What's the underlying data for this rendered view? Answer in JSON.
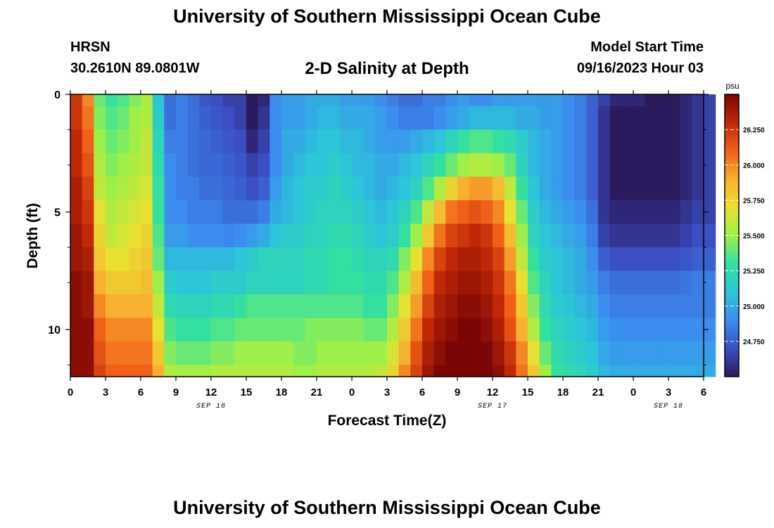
{
  "header": {
    "title": "University of Southern Mississippi Ocean Cube",
    "station": "HRSN",
    "coordinates": "30.2610N  89.0801W",
    "subtitle": "2-D Salinity at Depth",
    "model_start_label": "Model Start Time",
    "model_start_value": "09/16/2023 Hour 03"
  },
  "footer": {
    "title": "University of Southern Mississippi Ocean Cube"
  },
  "chart_data": {
    "type": "heatmap",
    "title": "2-D Salinity at Depth",
    "xlabel": "Forecast Time(Z)",
    "ylabel": "Depth (ft)",
    "x_hours_range": [
      0,
      54
    ],
    "x_tick_hours": [
      0,
      3,
      6,
      9,
      12,
      15,
      18,
      21,
      24,
      27,
      30,
      33,
      36,
      39,
      42,
      45,
      48,
      51,
      54
    ],
    "x_tick_labels": [
      "0",
      "3",
      "6",
      "9",
      "12",
      "15",
      "18",
      "21",
      "0",
      "3",
      "6",
      "9",
      "12",
      "15",
      "18",
      "21",
      "0",
      "3",
      "6"
    ],
    "date_labels": [
      {
        "hour": 12,
        "text": "SEP 16"
      },
      {
        "hour": 36,
        "text": "SEP 17"
      },
      {
        "hour": 51,
        "text": "SEP 18"
      }
    ],
    "y_range": [
      0,
      12
    ],
    "y_major_ticks": [
      0,
      5,
      10
    ],
    "y_minor_ticks": [
      1.5,
      3,
      6.5,
      8,
      11.5
    ],
    "colorbar": {
      "unit": "psu",
      "range": [
        24.5,
        26.5
      ],
      "ticks": [
        24.75,
        25.0,
        25.25,
        25.5,
        25.75,
        26.0,
        26.25
      ],
      "tick_labels": [
        "24.750",
        "25.000",
        "25.250",
        "25.500",
        "25.750",
        "26.000",
        "26.250"
      ],
      "colormap": [
        "#2b1b5e",
        "#3a4fc4",
        "#3b8ef0",
        "#2bc6d8",
        "#33e0a0",
        "#9ef048",
        "#e8e030",
        "#f8b030",
        "#f06018",
        "#c02808",
        "#7a0606"
      ]
    },
    "depth_levels_ft": [
      0,
      1,
      2,
      3,
      4,
      5,
      6,
      7,
      8,
      9,
      10,
      11,
      12
    ],
    "salinity_psu": [
      [
        26.25,
        26.0,
        25.4,
        25.3,
        25.35,
        25.45,
        25.55,
        25.1,
        24.8,
        24.85,
        24.8,
        24.72,
        24.7,
        24.65,
        24.65,
        24.3,
        24.55,
        24.9,
        24.95,
        24.95,
        25.0,
        25.0,
        25.0,
        24.95,
        24.95,
        24.95,
        24.9,
        24.85,
        24.8,
        24.8,
        24.85,
        24.85,
        24.9,
        24.95,
        24.9,
        24.9,
        24.95,
        24.95,
        24.95,
        24.95,
        24.95,
        24.95,
        24.9,
        24.85,
        24.75,
        24.65,
        24.55,
        24.55,
        24.55,
        24.5,
        24.5,
        24.5,
        24.55,
        24.6,
        24.65
      ],
      [
        26.25,
        26.05,
        25.45,
        25.35,
        25.4,
        25.5,
        25.55,
        25.15,
        24.8,
        24.85,
        24.8,
        24.75,
        24.72,
        24.7,
        24.65,
        24.45,
        24.6,
        24.9,
        24.95,
        24.95,
        25.0,
        25.05,
        25.05,
        25.0,
        25.0,
        25.0,
        24.95,
        24.9,
        24.85,
        24.85,
        24.85,
        24.9,
        24.95,
        25.0,
        25.05,
        25.05,
        25.05,
        25.05,
        25.0,
        25.0,
        24.95,
        24.95,
        24.9,
        24.85,
        24.75,
        24.6,
        24.5,
        24.5,
        24.5,
        24.5,
        24.5,
        24.5,
        24.55,
        24.6,
        24.65
      ],
      [
        26.3,
        26.1,
        25.5,
        25.4,
        25.45,
        25.5,
        25.6,
        25.2,
        24.85,
        24.85,
        24.8,
        24.78,
        24.75,
        24.72,
        24.7,
        24.55,
        24.65,
        24.9,
        25.0,
        25.0,
        25.05,
        25.1,
        25.1,
        25.05,
        25.05,
        25.0,
        24.95,
        24.95,
        24.95,
        25.0,
        25.05,
        25.1,
        25.2,
        25.3,
        25.35,
        25.35,
        25.3,
        25.25,
        25.15,
        25.05,
        25.0,
        24.95,
        24.9,
        24.85,
        24.75,
        24.6,
        24.5,
        24.5,
        24.5,
        24.5,
        24.5,
        24.5,
        24.55,
        24.6,
        24.65
      ],
      [
        26.3,
        26.15,
        25.55,
        25.45,
        25.5,
        25.55,
        25.6,
        25.25,
        24.9,
        24.85,
        24.8,
        24.78,
        24.78,
        24.75,
        24.72,
        24.65,
        24.7,
        24.9,
        25.0,
        25.05,
        25.1,
        25.1,
        25.15,
        25.1,
        25.05,
        25.05,
        25.0,
        25.0,
        25.05,
        25.1,
        25.2,
        25.3,
        25.4,
        25.5,
        25.55,
        25.55,
        25.5,
        25.4,
        25.2,
        25.05,
        25.0,
        24.95,
        24.9,
        24.85,
        24.75,
        24.6,
        24.5,
        24.5,
        24.5,
        24.5,
        24.5,
        24.5,
        24.55,
        24.6,
        24.65
      ],
      [
        26.35,
        26.2,
        25.6,
        25.5,
        25.55,
        25.6,
        25.65,
        25.3,
        24.9,
        24.85,
        24.85,
        24.8,
        24.8,
        24.78,
        24.75,
        24.7,
        24.75,
        24.95,
        25.05,
        25.1,
        25.15,
        25.15,
        25.2,
        25.15,
        25.1,
        25.05,
        25.0,
        25.05,
        25.1,
        25.2,
        25.35,
        25.55,
        25.75,
        25.9,
        25.95,
        25.95,
        25.85,
        25.6,
        25.3,
        25.1,
        25.0,
        24.95,
        24.9,
        24.85,
        24.75,
        24.6,
        24.5,
        24.5,
        24.5,
        24.5,
        24.5,
        24.5,
        24.55,
        24.6,
        24.65
      ],
      [
        26.35,
        26.25,
        25.7,
        25.55,
        25.6,
        25.65,
        25.7,
        25.3,
        24.9,
        24.9,
        24.85,
        24.85,
        24.85,
        24.8,
        24.8,
        24.8,
        24.85,
        25.0,
        25.05,
        25.1,
        25.15,
        25.2,
        25.2,
        25.2,
        25.15,
        25.1,
        25.05,
        25.1,
        25.2,
        25.35,
        25.6,
        25.85,
        26.05,
        26.1,
        26.15,
        26.1,
        26.0,
        25.7,
        25.4,
        25.15,
        25.05,
        25.0,
        24.95,
        24.9,
        24.8,
        24.6,
        24.55,
        24.55,
        24.55,
        24.55,
        24.55,
        24.55,
        24.6,
        24.65,
        24.65
      ],
      [
        26.4,
        26.3,
        25.75,
        25.6,
        25.65,
        25.7,
        25.75,
        25.35,
        24.95,
        24.95,
        24.9,
        24.9,
        24.9,
        24.88,
        24.9,
        24.95,
        25.0,
        25.1,
        25.15,
        25.15,
        25.2,
        25.2,
        25.25,
        25.25,
        25.2,
        25.15,
        25.1,
        25.15,
        25.3,
        25.5,
        25.8,
        26.05,
        26.2,
        26.25,
        26.3,
        26.25,
        26.1,
        25.85,
        25.5,
        25.2,
        25.1,
        25.05,
        25.0,
        24.95,
        24.85,
        24.65,
        24.6,
        24.6,
        24.6,
        24.6,
        24.6,
        24.6,
        24.65,
        24.7,
        24.7
      ],
      [
        26.4,
        26.35,
        25.8,
        25.7,
        25.7,
        25.75,
        25.8,
        25.4,
        25.05,
        25.05,
        25.05,
        25.05,
        25.05,
        25.05,
        25.1,
        25.15,
        25.2,
        25.2,
        25.2,
        25.2,
        25.25,
        25.25,
        25.3,
        25.3,
        25.25,
        25.2,
        25.2,
        25.25,
        25.45,
        25.7,
        26.0,
        26.2,
        26.3,
        26.35,
        26.35,
        26.3,
        26.2,
        25.95,
        25.6,
        25.3,
        25.15,
        25.1,
        25.05,
        25.0,
        24.9,
        24.75,
        24.7,
        24.7,
        24.7,
        24.7,
        24.7,
        24.7,
        24.72,
        24.75,
        24.75
      ],
      [
        26.45,
        26.4,
        25.9,
        25.8,
        25.8,
        25.8,
        25.85,
        25.5,
        25.15,
        25.1,
        25.1,
        25.1,
        25.15,
        25.15,
        25.15,
        25.2,
        25.2,
        25.2,
        25.2,
        25.2,
        25.25,
        25.25,
        25.3,
        25.3,
        25.3,
        25.25,
        25.25,
        25.35,
        25.55,
        25.85,
        26.1,
        26.3,
        26.35,
        26.4,
        26.4,
        26.35,
        26.25,
        26.05,
        25.7,
        25.35,
        25.2,
        25.1,
        25.05,
        25.0,
        24.95,
        24.85,
        24.8,
        24.8,
        24.8,
        24.8,
        24.8,
        24.8,
        24.82,
        24.85,
        24.85
      ],
      [
        26.45,
        26.4,
        26.0,
        25.9,
        25.9,
        25.9,
        25.9,
        25.6,
        25.25,
        25.2,
        25.2,
        25.2,
        25.25,
        25.25,
        25.3,
        25.35,
        25.35,
        25.35,
        25.35,
        25.35,
        25.35,
        25.35,
        25.35,
        25.35,
        25.35,
        25.3,
        25.3,
        25.45,
        25.7,
        25.95,
        26.2,
        26.35,
        26.4,
        26.45,
        26.45,
        26.4,
        26.3,
        26.1,
        25.8,
        25.45,
        25.25,
        25.15,
        25.1,
        25.05,
        25.0,
        24.9,
        24.85,
        24.85,
        24.85,
        24.85,
        24.85,
        24.85,
        24.85,
        24.85,
        24.85
      ],
      [
        26.45,
        26.45,
        26.1,
        26.0,
        26.0,
        26.0,
        26.0,
        25.7,
        25.35,
        25.3,
        25.3,
        25.3,
        25.35,
        25.35,
        25.4,
        25.4,
        25.4,
        25.4,
        25.4,
        25.4,
        25.45,
        25.45,
        25.45,
        25.45,
        25.45,
        25.4,
        25.4,
        25.55,
        25.8,
        26.05,
        26.3,
        26.4,
        26.45,
        26.5,
        26.5,
        26.45,
        26.35,
        26.15,
        25.9,
        25.55,
        25.3,
        25.2,
        25.15,
        25.1,
        25.05,
        24.95,
        24.9,
        24.9,
        24.9,
        24.9,
        24.9,
        24.9,
        24.9,
        24.9,
        24.9
      ],
      [
        26.45,
        26.45,
        26.15,
        26.05,
        26.05,
        26.05,
        26.05,
        25.8,
        25.45,
        25.4,
        25.4,
        25.4,
        25.45,
        25.45,
        25.5,
        25.5,
        25.5,
        25.5,
        25.5,
        25.45,
        25.45,
        25.5,
        25.5,
        25.5,
        25.5,
        25.5,
        25.5,
        25.65,
        25.9,
        26.15,
        26.35,
        26.45,
        26.5,
        26.5,
        26.5,
        26.5,
        26.4,
        26.25,
        26.0,
        25.7,
        25.4,
        25.25,
        25.2,
        25.15,
        25.1,
        25.0,
        24.95,
        24.95,
        24.95,
        24.95,
        24.95,
        24.95,
        24.95,
        24.95,
        24.95
      ],
      [
        26.45,
        26.45,
        26.2,
        26.1,
        26.1,
        26.1,
        26.1,
        25.9,
        25.55,
        25.5,
        25.5,
        25.5,
        25.55,
        25.55,
        25.55,
        25.55,
        25.55,
        25.55,
        25.55,
        25.5,
        25.5,
        25.55,
        25.55,
        25.55,
        25.55,
        25.55,
        25.6,
        25.75,
        26.0,
        26.2,
        26.4,
        26.5,
        26.5,
        26.5,
        26.5,
        26.5,
        26.45,
        26.3,
        26.05,
        25.8,
        25.5,
        25.3,
        25.25,
        25.2,
        25.15,
        25.05,
        25.0,
        25.0,
        25.0,
        25.0,
        25.0,
        25.0,
        25.0,
        25.0,
        25.0
      ]
    ]
  }
}
